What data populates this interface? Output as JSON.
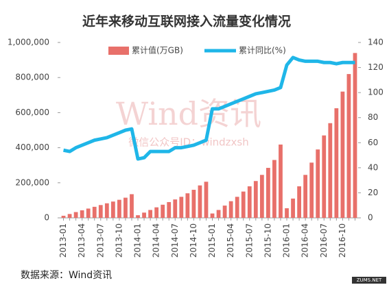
{
  "chart_data": {
    "type": "bar_line",
    "title": "近年来移动互联网接入流量变化情况",
    "source": "数据来源：Wind资讯",
    "watermark": "Wind资讯",
    "watermark_sub": "微信公众号ID：windzxsh",
    "logo": "ZUMS.NET",
    "categories": [
      "2013-01",
      null,
      null,
      "2013-04",
      null,
      null,
      "2013-07",
      null,
      null,
      "2013-10",
      null,
      null,
      "2014-01",
      null,
      null,
      "2014-04",
      null,
      null,
      "2014-07",
      null,
      null,
      "2014-10",
      null,
      null,
      "2015-01",
      null,
      null,
      "2015-04",
      null,
      null,
      "2015-07",
      null,
      null,
      "2015-10",
      null,
      null,
      "2016-01",
      null,
      null,
      "2016-04",
      null,
      null,
      "2016-07",
      null,
      null,
      "2016-10",
      null,
      null
    ],
    "series": [
      {
        "name": "累计值(万GB)",
        "color": "#e8706a",
        "values": [
          12000,
          22000,
          33000,
          43000,
          53000,
          63000,
          73000,
          83000,
          93000,
          103000,
          115000,
          135000,
          15000,
          30000,
          45000,
          60000,
          75000,
          90000,
          105000,
          120000,
          140000,
          160000,
          185000,
          206000,
          25000,
          45000,
          70000,
          95000,
          120000,
          150000,
          180000,
          210000,
          245000,
          285000,
          330000,
          418000,
          55000,
          110000,
          180000,
          245000,
          315000,
          390000,
          470000,
          540000,
          625000,
          720000,
          820000,
          940000
        ]
      },
      {
        "name": "累计同比(%)",
        "color": "#1fb6e8",
        "axis": "y2",
        "values": [
          54,
          53,
          56,
          58,
          60,
          62,
          63,
          64,
          66,
          68,
          70,
          71,
          47,
          48,
          53,
          53,
          53,
          53,
          56,
          56,
          57,
          58,
          60,
          62,
          87,
          87,
          89,
          91,
          93,
          95,
          97,
          99,
          100,
          101,
          102,
          104,
          122,
          128,
          126,
          125,
          125,
          125,
          124,
          124,
          123,
          124,
          124,
          124
        ]
      }
    ],
    "ylim": [
      0,
      1000000
    ],
    "yticks": [
      0,
      {
        "value": 200000,
        "label": "200,000"
      },
      {
        "value": 400000,
        "label": "400,000"
      },
      {
        "value": 600000,
        "label": "600,000"
      },
      {
        "value": 800000,
        "label": "800,000"
      },
      {
        "value": 1000000,
        "label": "1,000,000"
      }
    ],
    "y2lim": [
      0,
      140
    ],
    "y2ticks": [
      0,
      20,
      40,
      60,
      80,
      100,
      120,
      140
    ],
    "legend": "top"
  }
}
